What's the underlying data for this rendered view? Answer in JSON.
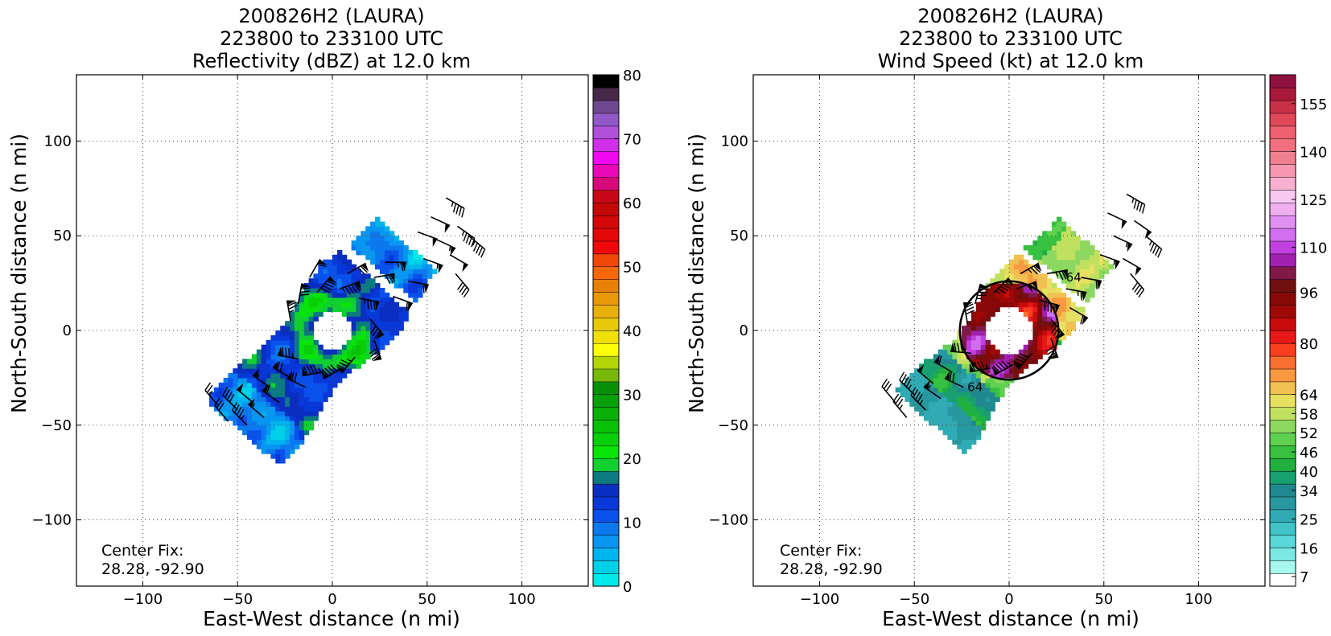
{
  "chart_data": [
    {
      "type": "heatmap",
      "title_lines": [
        "200826H2 (LAURA)",
        "223800 to 233100 UTC",
        "Reflectivity (dBZ) at 12.0 km"
      ],
      "xlabel": "East-West distance (n mi)",
      "ylabel": "North-South distance (n mi)",
      "xlim": [
        -135,
        135
      ],
      "ylim": [
        -135,
        135
      ],
      "xticks": [
        -100,
        -50,
        0,
        50,
        100
      ],
      "yticks": [
        -100,
        -50,
        0,
        50,
        100
      ],
      "xtick_labels": [
        "−100",
        "−50",
        "0",
        "50",
        "100"
      ],
      "ytick_labels": [
        "−100",
        "−50",
        "0",
        "50",
        "100"
      ],
      "grid": true,
      "annotation_lines": [
        "Center Fix:",
        "28.28, -92.90"
      ],
      "colorbar": {
        "min": 0,
        "max": 80,
        "ticks": [
          0,
          10,
          20,
          30,
          40,
          50,
          60,
          70,
          80
        ],
        "tick_labels": [
          "0",
          "10",
          "20",
          "30",
          "40",
          "50",
          "60",
          "70",
          "80"
        ],
        "colors": [
          "#00e8e8",
          "#00d0e8",
          "#00b4ee",
          "#0896f0",
          "#0c78ee",
          "#0a50ea",
          "#0838d8",
          "#0a2ec0",
          "#0c7a80",
          "#10d030",
          "#08e408",
          "#08d008",
          "#08c008",
          "#08b008",
          "#08a008",
          "#089008",
          "#78b808",
          "#b4d408",
          "#ffff08",
          "#f0e008",
          "#e8c808",
          "#e8b008",
          "#e89808",
          "#e88008",
          "#f86808",
          "#f04808",
          "#f00808",
          "#e40808",
          "#d40808",
          "#c40808",
          "#c80818",
          "#d8087a",
          "#e808b8",
          "#f008f0",
          "#d030e8",
          "#b050d8",
          "#9058c8",
          "#704890",
          "#482848",
          "#000000"
        ]
      },
      "field": {
        "swath_angle_deg": 49,
        "swath_half_width": 24,
        "eye_radius": 10,
        "eyewall_radius": 22,
        "swath_extent": [
          -72,
          60
        ],
        "gap_center": 37,
        "gap_half_length": 3,
        "typical_dbz": 13,
        "eyewall_dbz": 21
      },
      "barbs": [
        {
          "x": -60,
          "y": -40,
          "speed": 25,
          "dir": -40
        },
        {
          "x": -55,
          "y": -48,
          "speed": 30,
          "dir": -40
        },
        {
          "x": -50,
          "y": -42,
          "speed": 40,
          "dir": -45
        },
        {
          "x": -45,
          "y": -50,
          "speed": 45,
          "dir": -45
        },
        {
          "x": -42,
          "y": -38,
          "speed": 50,
          "dir": -50
        },
        {
          "x": -36,
          "y": -46,
          "speed": 55,
          "dir": -50
        },
        {
          "x": -33,
          "y": -30,
          "speed": 55,
          "dir": -55
        },
        {
          "x": -28,
          "y": -38,
          "speed": 60,
          "dir": -55
        },
        {
          "x": -22,
          "y": -25,
          "speed": 70,
          "dir": -60
        },
        {
          "x": -18,
          "y": -15,
          "speed": 85,
          "dir": -80
        },
        {
          "x": -14,
          "y": -30,
          "speed": 70,
          "dir": -65
        },
        {
          "x": -5,
          "y": -22,
          "speed": 95,
          "dir": -100
        },
        {
          "x": 5,
          "y": -20,
          "speed": 90,
          "dir": -120
        },
        {
          "x": 12,
          "y": -14,
          "speed": 85,
          "dir": -140
        },
        {
          "x": -22,
          "y": 5,
          "speed": 75,
          "dir": -10
        },
        {
          "x": -18,
          "y": 14,
          "speed": 80,
          "dir": 10
        },
        {
          "x": -8,
          "y": 20,
          "speed": 90,
          "dir": 40
        },
        {
          "x": 4,
          "y": 22,
          "speed": 95,
          "dir": 70
        },
        {
          "x": 14,
          "y": 17,
          "speed": 85,
          "dir": 100
        },
        {
          "x": 20,
          "y": 6,
          "speed": 80,
          "dir": 140
        },
        {
          "x": 22,
          "y": -5,
          "speed": 80,
          "dir": 160
        },
        {
          "x": -12,
          "y": 28,
          "speed": 60,
          "dir": 30
        },
        {
          "x": 8,
          "y": 30,
          "speed": 70,
          "dir": 60
        },
        {
          "x": 22,
          "y": 28,
          "speed": 70,
          "dir": 80
        },
        {
          "x": 32,
          "y": 18,
          "speed": 60,
          "dir": 110
        },
        {
          "x": 40,
          "y": 26,
          "speed": 60,
          "dir": 100
        },
        {
          "x": 28,
          "y": 36,
          "speed": 65,
          "dir": 90
        },
        {
          "x": 48,
          "y": 38,
          "speed": 55,
          "dir": 110
        },
        {
          "x": 55,
          "y": 48,
          "speed": 55,
          "dir": 115
        },
        {
          "x": 62,
          "y": 40,
          "speed": 50,
          "dir": 120
        },
        {
          "x": 66,
          "y": 55,
          "speed": 45,
          "dir": 125
        },
        {
          "x": 52,
          "y": 60,
          "speed": 50,
          "dir": 115
        },
        {
          "x": 45,
          "y": 52,
          "speed": 50,
          "dir": 110
        },
        {
          "x": 60,
          "y": 70,
          "speed": 45,
          "dir": 120
        },
        {
          "x": 72,
          "y": 50,
          "speed": 45,
          "dir": 130
        },
        {
          "x": 65,
          "y": 30,
          "speed": 40,
          "dir": 140
        }
      ]
    },
    {
      "type": "heatmap",
      "title_lines": [
        "200826H2 (LAURA)",
        "223800 to 233100 UTC",
        "Wind Speed (kt) at 12.0 km"
      ],
      "xlabel": "East-West distance (n mi)",
      "ylabel": "North-South distance (n mi)",
      "xlim": [
        -135,
        135
      ],
      "ylim": [
        -135,
        135
      ],
      "xticks": [
        -100,
        -50,
        0,
        50,
        100
      ],
      "yticks": [
        -100,
        -50,
        0,
        50,
        100
      ],
      "xtick_labels": [
        "−100",
        "−50",
        "0",
        "50",
        "100"
      ],
      "ytick_labels": [
        "−100",
        "−50",
        "0",
        "50",
        "100"
      ],
      "grid": true,
      "annotation_lines": [
        "Center Fix:",
        "28.28, -92.90"
      ],
      "contour_label": "64",
      "colorbar": {
        "min": 4,
        "max": 164,
        "ticks": [
          7,
          16,
          25,
          34,
          40,
          46,
          52,
          58,
          64,
          80,
          96,
          110,
          125,
          140,
          155
        ],
        "tick_labels": [
          "7",
          "16",
          "25",
          "34",
          "40",
          "46",
          "52",
          "58",
          "64",
          "80",
          "96",
          "110",
          "125",
          "140",
          "155"
        ],
        "colors": [
          "#ffffff",
          "#a8f8f0",
          "#7ce8e4",
          "#58d8d8",
          "#40c4c8",
          "#30aab4",
          "#2898a0",
          "#208890",
          "#18a070",
          "#20b040",
          "#38c040",
          "#60d050",
          "#8cd860",
          "#c0e060",
          "#e8e060",
          "#f0c050",
          "#f89840",
          "#f87030",
          "#f84020",
          "#e81818",
          "#c80c0c",
          "#a00808",
          "#880808",
          "#701010",
          "#801848",
          "#a020b0",
          "#c040e0",
          "#d070f0",
          "#e090f0",
          "#f0b0f0",
          "#f8c8f0",
          "#f8b0d0",
          "#f898b0",
          "#f08090",
          "#f07080",
          "#f06070",
          "#e04858",
          "#c83048",
          "#a81838",
          "#901040"
        ]
      },
      "field": {
        "swath_angle_deg": 49,
        "swath_half_width": 22,
        "eye_radius": 12,
        "eyewall_radius": 24,
        "swath_extent": [
          -64,
          62
        ],
        "gap_center": 36,
        "gap_half_length": 2,
        "typical_kt": 60
      },
      "barbs": [
        {
          "x": -60,
          "y": -38,
          "speed": 30,
          "dir": -40
        },
        {
          "x": -54,
          "y": -46,
          "speed": 35,
          "dir": -40
        },
        {
          "x": -50,
          "y": -34,
          "speed": 45,
          "dir": -45
        },
        {
          "x": -44,
          "y": -42,
          "speed": 45,
          "dir": -45
        },
        {
          "x": -40,
          "y": -28,
          "speed": 50,
          "dir": -50
        },
        {
          "x": -36,
          "y": -36,
          "speed": 55,
          "dir": -55
        },
        {
          "x": -30,
          "y": -22,
          "speed": 60,
          "dir": -60
        },
        {
          "x": -24,
          "y": -30,
          "speed": 70,
          "dir": -65
        },
        {
          "x": -20,
          "y": -12,
          "speed": 85,
          "dir": -85
        },
        {
          "x": -10,
          "y": -20,
          "speed": 95,
          "dir": -100
        },
        {
          "x": 2,
          "y": -18,
          "speed": 95,
          "dir": -120
        },
        {
          "x": 12,
          "y": -12,
          "speed": 90,
          "dir": -140
        },
        {
          "x": -22,
          "y": 4,
          "speed": 80,
          "dir": -10
        },
        {
          "x": -18,
          "y": 14,
          "speed": 85,
          "dir": 15
        },
        {
          "x": -8,
          "y": 20,
          "speed": 95,
          "dir": 45
        },
        {
          "x": 4,
          "y": 22,
          "speed": 100,
          "dir": 70
        },
        {
          "x": 16,
          "y": 16,
          "speed": 90,
          "dir": 105
        },
        {
          "x": 22,
          "y": 6,
          "speed": 85,
          "dir": 140
        },
        {
          "x": 22,
          "y": -4,
          "speed": 80,
          "dir": 160
        },
        {
          "x": 6,
          "y": 30,
          "speed": 75,
          "dir": 60
        },
        {
          "x": 20,
          "y": 30,
          "speed": 75,
          "dir": 80
        },
        {
          "x": 30,
          "y": 22,
          "speed": 65,
          "dir": 100
        },
        {
          "x": 32,
          "y": 12,
          "speed": 60,
          "dir": 120
        },
        {
          "x": 38,
          "y": 28,
          "speed": 60,
          "dir": 100
        },
        {
          "x": 48,
          "y": 40,
          "speed": 55,
          "dir": 110
        },
        {
          "x": 55,
          "y": 50,
          "speed": 55,
          "dir": 115
        },
        {
          "x": 60,
          "y": 38,
          "speed": 50,
          "dir": 120
        },
        {
          "x": 66,
          "y": 58,
          "speed": 50,
          "dir": 125
        },
        {
          "x": 52,
          "y": 62,
          "speed": 50,
          "dir": 115
        },
        {
          "x": 62,
          "y": 72,
          "speed": 45,
          "dir": 120
        },
        {
          "x": 72,
          "y": 50,
          "speed": 45,
          "dir": 130
        },
        {
          "x": 64,
          "y": 30,
          "speed": 40,
          "dir": 140
        }
      ]
    }
  ]
}
